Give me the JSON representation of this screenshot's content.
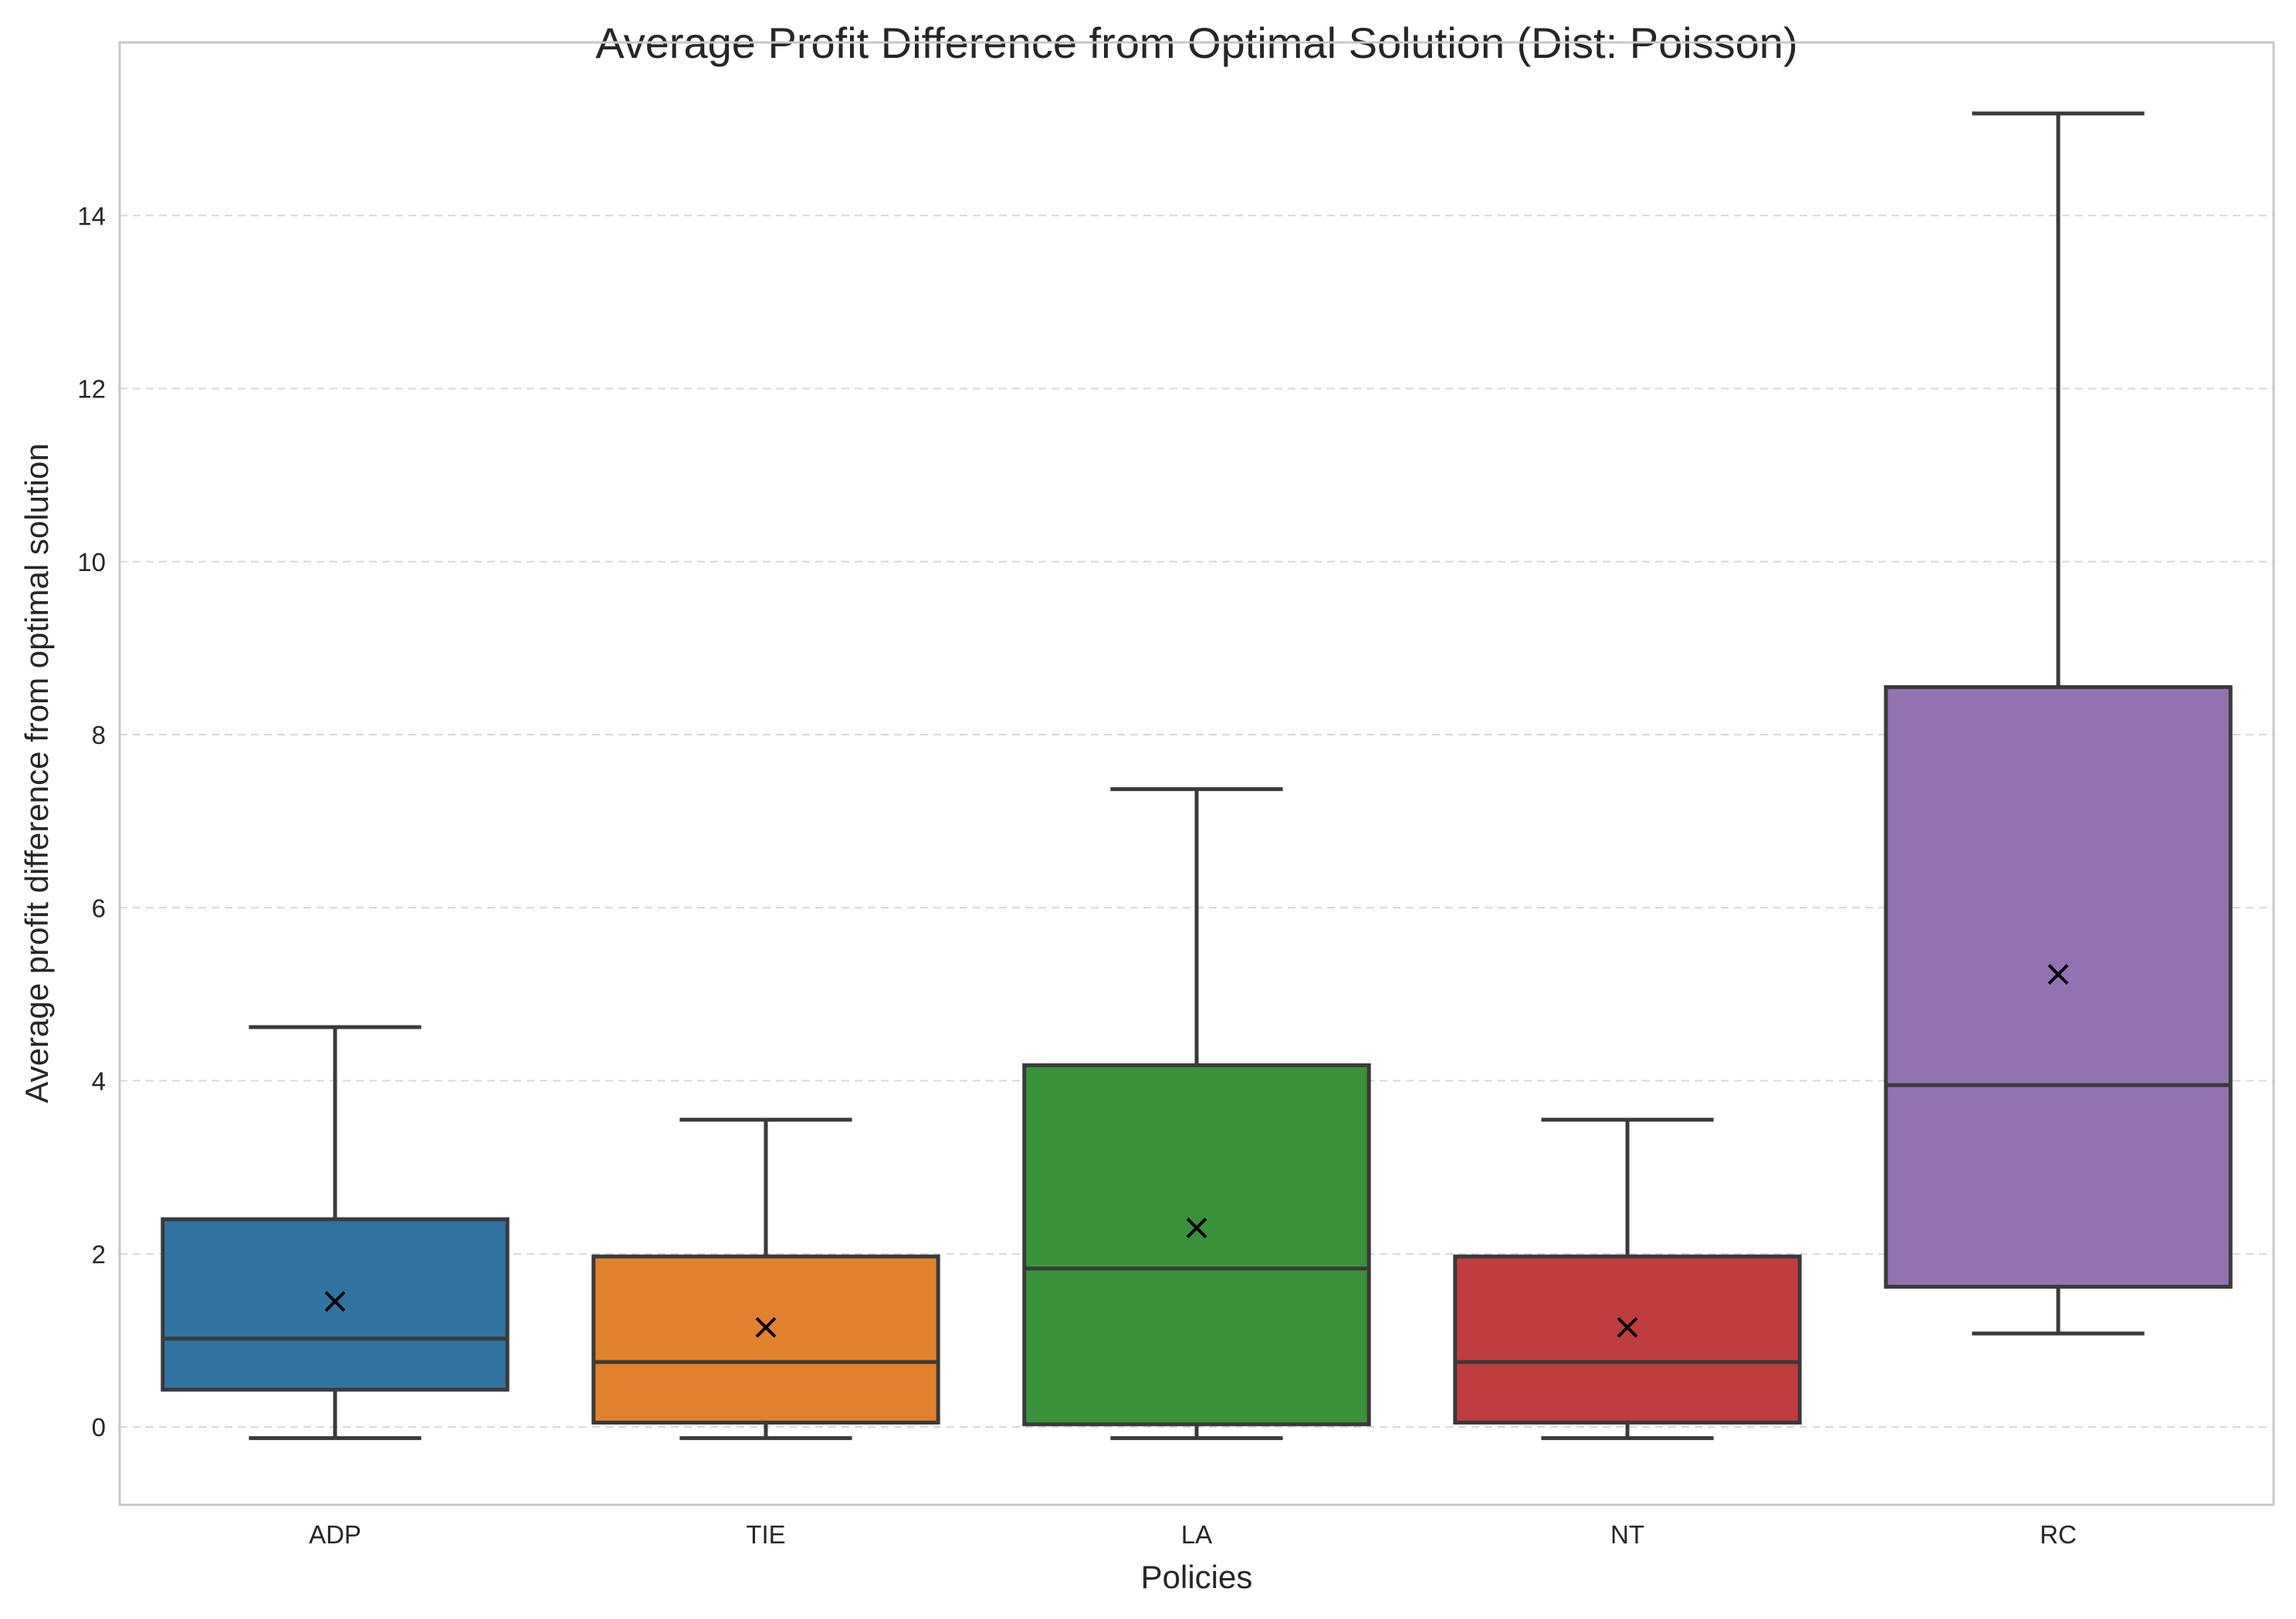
{
  "chart_data": {
    "type": "box",
    "title": "Average Profit Difference from Optimal Solution (Dist: Poisson)",
    "xlabel": "Policies",
    "ylabel": "Average profit difference from optimal solution",
    "ylim": [
      -0.9,
      16.0
    ],
    "yticks": [
      0,
      2,
      4,
      6,
      8,
      10,
      12,
      14
    ],
    "grid": "horizontal-dashed",
    "categories": [
      "ADP",
      "TIE",
      "LA",
      "NT",
      "RC"
    ],
    "boxes": [
      {
        "category": "ADP",
        "whislo": -0.13,
        "q1": 0.43,
        "median": 1.02,
        "q3": 2.4,
        "whishi": 4.62,
        "mean": 1.45,
        "color": "#3274a1"
      },
      {
        "category": "TIE",
        "whislo": -0.13,
        "q1": 0.05,
        "median": 0.75,
        "q3": 1.97,
        "whishi": 3.55,
        "mean": 1.15,
        "color": "#e1812c"
      },
      {
        "category": "LA",
        "whislo": -0.13,
        "q1": 0.03,
        "median": 1.83,
        "q3": 4.18,
        "whishi": 7.37,
        "mean": 2.3,
        "color": "#3a923a"
      },
      {
        "category": "NT",
        "whislo": -0.13,
        "q1": 0.05,
        "median": 0.75,
        "q3": 1.97,
        "whishi": 3.55,
        "mean": 1.15,
        "color": "#c03d3e"
      },
      {
        "category": "RC",
        "whislo": 1.08,
        "q1": 1.62,
        "median": 3.95,
        "q3": 8.55,
        "whishi": 15.18,
        "mean": 5.23,
        "color": "#9372b2"
      }
    ]
  }
}
